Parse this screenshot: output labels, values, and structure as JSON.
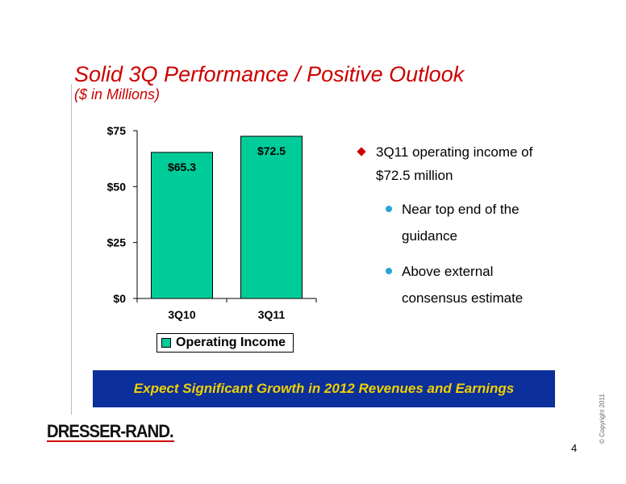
{
  "slide": {
    "title": "Solid 3Q Performance / Positive Outlook",
    "subtitle": "($ in Millions)",
    "page_number": "4",
    "copyright": "© Copyright 2011",
    "logo_text": "DRESSER-RAND."
  },
  "bullets": {
    "main": "3Q11 operating income of $72.5 million",
    "sub": [
      "Near top end of the guidance",
      "Above external consensus estimate"
    ]
  },
  "banner": {
    "text": "Expect Significant Growth in 2012 Revenues and Earnings"
  },
  "colors": {
    "title": "#cc0000",
    "bar_fill": "#00cc99",
    "banner_bg": "#0b2f9b",
    "banner_text": "#f0d000",
    "bullet_diamond": "#cc0000",
    "bullet_dot": "#26a6d6"
  },
  "chart_data": {
    "type": "bar",
    "categories": [
      "3Q10",
      "3Q11"
    ],
    "series": [
      {
        "name": "Operating Income",
        "values": [
          65.3,
          72.5
        ]
      }
    ],
    "data_labels": [
      "$65.3",
      "$72.5"
    ],
    "y_ticks": [
      0,
      25,
      50,
      75
    ],
    "y_tick_labels": [
      "$0",
      "$25",
      "$50",
      "$75"
    ],
    "ylim": [
      0,
      75
    ],
    "legend": "bottom",
    "grid": false
  }
}
